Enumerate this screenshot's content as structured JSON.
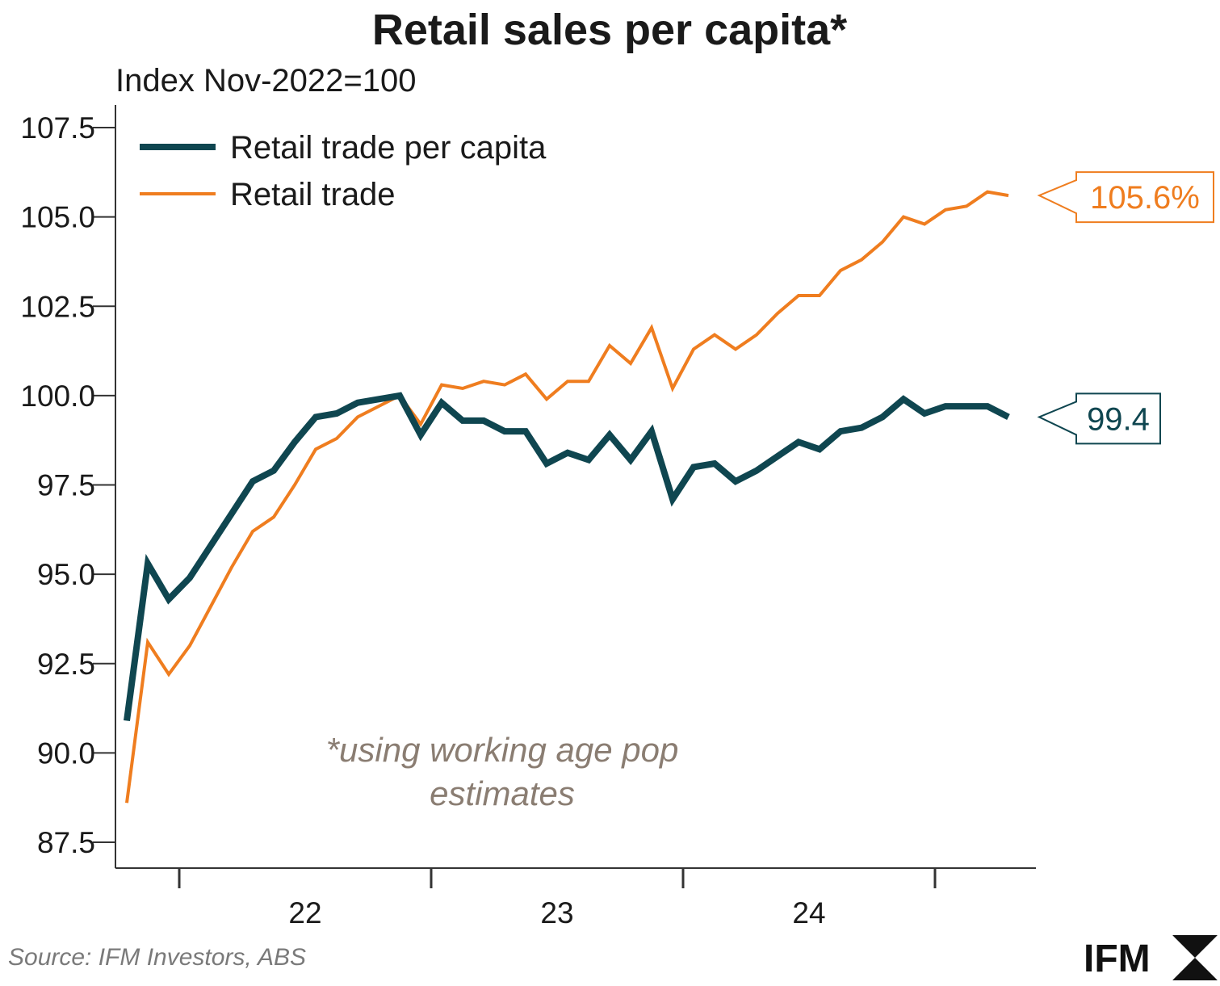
{
  "chart_data": {
    "type": "line",
    "title": "Retail sales per capita*",
    "ylabel": "Index Nov-2022=100",
    "xlabel": "",
    "ylim": [
      87.5,
      108.5
    ],
    "y_ticks": [
      "87.5",
      "90.0",
      "92.5",
      "95.0",
      "97.5",
      "100.0",
      "102.5",
      "105.0",
      "107.5"
    ],
    "y_tick_values": [
      87.5,
      90.0,
      92.5,
      95.0,
      97.5,
      100.0,
      102.5,
      105.0,
      107.5
    ],
    "x_ticks": [
      "22",
      "23",
      "24"
    ],
    "grid": false,
    "legend_position": "top-left",
    "series": [
      {
        "name": "Retail trade per capita",
        "color": "#0f4650",
        "width": "thick",
        "values": [
          90.9,
          95.3,
          94.3,
          94.9,
          95.8,
          96.7,
          97.6,
          97.9,
          98.7,
          99.4,
          99.5,
          99.8,
          99.9,
          100.0,
          98.9,
          99.8,
          99.3,
          99.3,
          99.0,
          99.0,
          98.1,
          98.4,
          98.2,
          98.9,
          98.2,
          99.0,
          97.1,
          98.0,
          98.1,
          97.6,
          97.9,
          98.3,
          98.7,
          98.5,
          99.0,
          99.1,
          99.4,
          99.9,
          99.5,
          99.7,
          99.7,
          99.7,
          99.4
        ],
        "end_label": "99.4"
      },
      {
        "name": "Retail trade",
        "color": "#ef7d1f",
        "width": "thin",
        "values": [
          88.6,
          93.1,
          92.2,
          93.0,
          94.1,
          95.2,
          96.2,
          96.6,
          97.5,
          98.5,
          98.8,
          99.4,
          99.7,
          100.0,
          99.2,
          100.3,
          100.2,
          100.4,
          100.3,
          100.6,
          99.9,
          100.4,
          100.4,
          101.4,
          100.9,
          101.9,
          100.2,
          101.3,
          101.7,
          101.3,
          101.7,
          102.3,
          102.8,
          102.8,
          103.5,
          103.8,
          104.3,
          105.0,
          104.8,
          105.2,
          105.3,
          105.7,
          105.6
        ],
        "end_label": "105.6%"
      }
    ],
    "annotation": [
      "*using working age pop",
      "estimates"
    ]
  },
  "source": "Source: IFM Investors, ABS",
  "logo": "IFM"
}
